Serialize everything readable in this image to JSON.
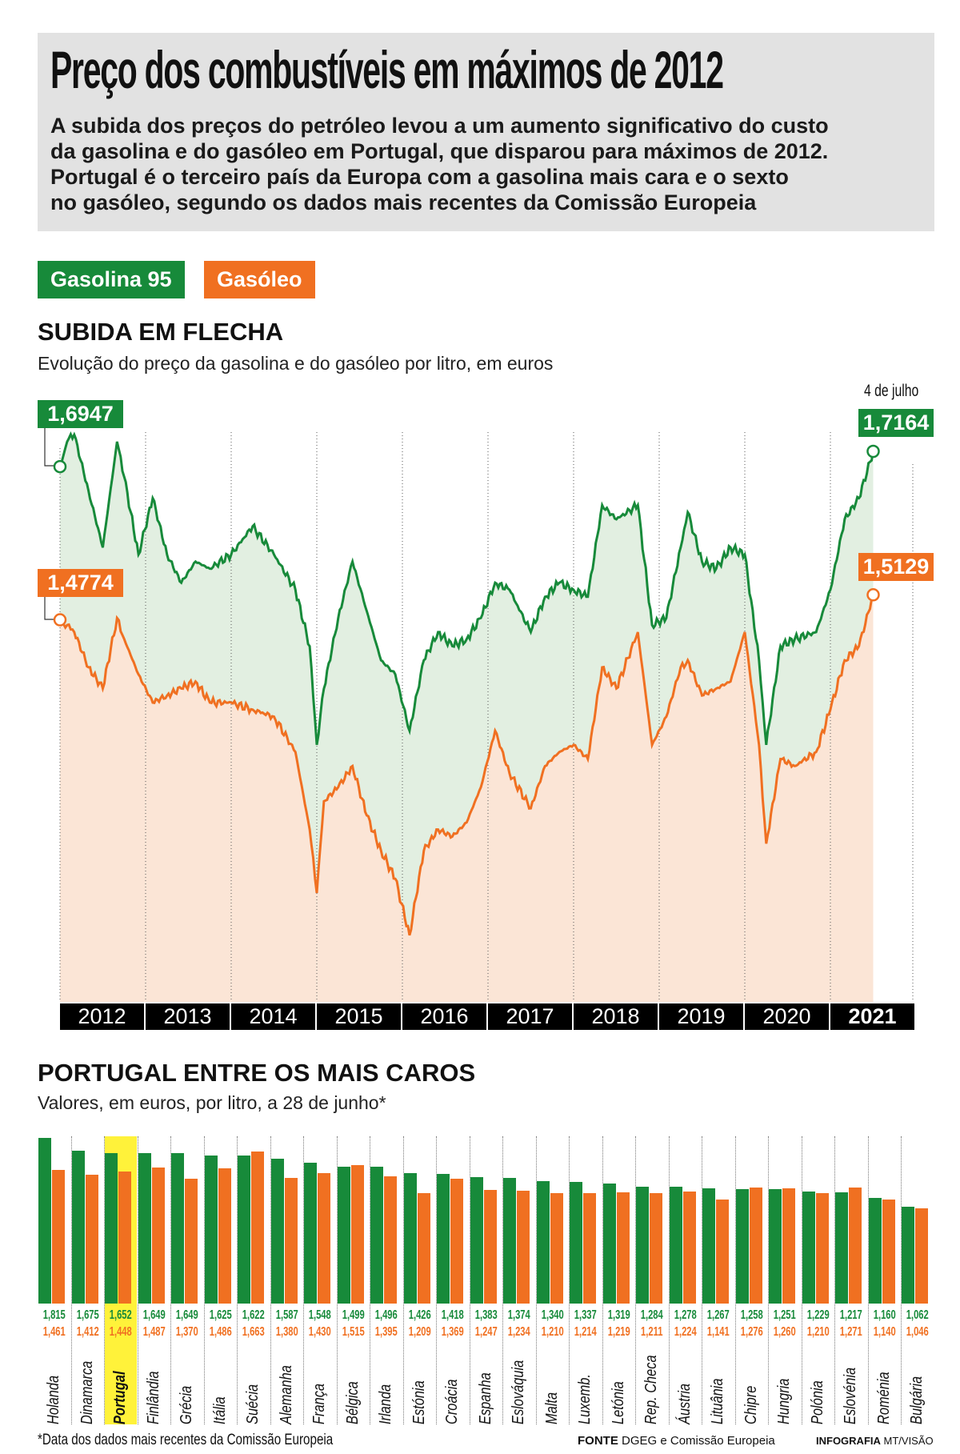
{
  "header": {
    "title": "Preço dos combustíveis em máximos de 2012",
    "intro": [
      "A subida dos preços do petróleo levou a um aumento significativo do custo",
      "da gasolina e do gasóleo em Portugal, que disparou para máximos de 2012.",
      "Portugal é o terceiro país da Europa com a gasolina mais cara e o sexto",
      "no gasóleo, segundo os dados mais recentes da Comissão Europeia"
    ]
  },
  "legend": {
    "gasoline": "Gasolina 95",
    "diesel": "Gasóleo"
  },
  "colors": {
    "gasoline": "#178a3a",
    "diesel": "#f07021",
    "gasoline_fill": "#e2efe1",
    "diesel_fill": "#fbe5d6",
    "highlight": "#fff23a",
    "header_bg": "#e2e2e2"
  },
  "chart_data": [
    {
      "type": "line",
      "title": "SUBIDA EM FLECHA",
      "subtitle": "Evolução do preço da gasolina e do gasóleo por litro, em euros",
      "x_tick_labels": [
        "2012",
        "2013",
        "2014",
        "2015",
        "2016",
        "2017",
        "2018",
        "2019",
        "2020",
        "2021"
      ],
      "end_label": "4 de julho",
      "annotations": {
        "gasoline_start": "1,6947",
        "gasoline_end": "1,7164",
        "diesel_start": "1,4774",
        "diesel_end": "1,5129"
      },
      "series": [
        {
          "name": "Gasolina 95",
          "points": [
            [
              "2012-01",
              1.6947
            ],
            [
              "2012-02",
              1.73
            ],
            [
              "2012-03",
              1.74
            ],
            [
              "2012-05",
              1.66
            ],
            [
              "2012-07",
              1.58
            ],
            [
              "2012-09",
              1.73
            ],
            [
              "2012-10",
              1.68
            ],
            [
              "2012-12",
              1.57
            ],
            [
              "2013-02",
              1.65
            ],
            [
              "2013-04",
              1.57
            ],
            [
              "2013-06",
              1.53
            ],
            [
              "2013-08",
              1.56
            ],
            [
              "2013-10",
              1.55
            ],
            [
              "2014-01",
              1.57
            ],
            [
              "2014-04",
              1.61
            ],
            [
              "2014-07",
              1.57
            ],
            [
              "2014-10",
              1.52
            ],
            [
              "2014-12",
              1.44
            ],
            [
              "2015-01",
              1.3
            ],
            [
              "2015-02",
              1.38
            ],
            [
              "2015-04",
              1.48
            ],
            [
              "2015-06",
              1.56
            ],
            [
              "2015-08",
              1.49
            ],
            [
              "2015-10",
              1.42
            ],
            [
              "2015-12",
              1.4
            ],
            [
              "2016-02",
              1.32
            ],
            [
              "2016-04",
              1.42
            ],
            [
              "2016-06",
              1.46
            ],
            [
              "2016-08",
              1.44
            ],
            [
              "2016-10",
              1.45
            ],
            [
              "2016-12",
              1.48
            ],
            [
              "2017-02",
              1.53
            ],
            [
              "2017-04",
              1.52
            ],
            [
              "2017-07",
              1.46
            ],
            [
              "2017-09",
              1.51
            ],
            [
              "2017-11",
              1.53
            ],
            [
              "2018-01",
              1.52
            ],
            [
              "2018-03",
              1.51
            ],
            [
              "2018-05",
              1.64
            ],
            [
              "2018-07",
              1.62
            ],
            [
              "2018-10",
              1.64
            ],
            [
              "2018-12",
              1.47
            ],
            [
              "2019-02",
              1.48
            ],
            [
              "2019-04",
              1.58
            ],
            [
              "2019-05",
              1.63
            ],
            [
              "2019-07",
              1.56
            ],
            [
              "2019-09",
              1.55
            ],
            [
              "2019-11",
              1.58
            ],
            [
              "2020-01",
              1.57
            ],
            [
              "2020-03",
              1.42
            ],
            [
              "2020-04",
              1.3
            ],
            [
              "2020-06",
              1.44
            ],
            [
              "2020-08",
              1.45
            ],
            [
              "2020-11",
              1.46
            ],
            [
              "2021-01",
              1.52
            ],
            [
              "2021-03",
              1.62
            ],
            [
              "2021-05",
              1.65
            ],
            [
              "2021-07",
              1.7164
            ]
          ]
        },
        {
          "name": "Gasóleo",
          "points": [
            [
              "2012-01",
              1.4774
            ],
            [
              "2012-02",
              1.47
            ],
            [
              "2012-03",
              1.46
            ],
            [
              "2012-05",
              1.41
            ],
            [
              "2012-07",
              1.38
            ],
            [
              "2012-09",
              1.48
            ],
            [
              "2012-10",
              1.45
            ],
            [
              "2012-12",
              1.4
            ],
            [
              "2013-02",
              1.36
            ],
            [
              "2013-04",
              1.37
            ],
            [
              "2013-06",
              1.38
            ],
            [
              "2013-08",
              1.39
            ],
            [
              "2013-10",
              1.36
            ],
            [
              "2014-01",
              1.36
            ],
            [
              "2014-04",
              1.35
            ],
            [
              "2014-07",
              1.34
            ],
            [
              "2014-10",
              1.29
            ],
            [
              "2014-12",
              1.18
            ],
            [
              "2015-01",
              1.09
            ],
            [
              "2015-02",
              1.22
            ],
            [
              "2015-04",
              1.24
            ],
            [
              "2015-06",
              1.27
            ],
            [
              "2015-08",
              1.2
            ],
            [
              "2015-10",
              1.15
            ],
            [
              "2015-12",
              1.11
            ],
            [
              "2016-02",
              1.03
            ],
            [
              "2016-04",
              1.15
            ],
            [
              "2016-06",
              1.18
            ],
            [
              "2016-08",
              1.17
            ],
            [
              "2016-10",
              1.19
            ],
            [
              "2016-12",
              1.24
            ],
            [
              "2017-02",
              1.32
            ],
            [
              "2017-04",
              1.26
            ],
            [
              "2017-07",
              1.21
            ],
            [
              "2017-09",
              1.27
            ],
            [
              "2017-11",
              1.29
            ],
            [
              "2018-01",
              1.3
            ],
            [
              "2018-03",
              1.28
            ],
            [
              "2018-05",
              1.41
            ],
            [
              "2018-07",
              1.38
            ],
            [
              "2018-10",
              1.46
            ],
            [
              "2018-12",
              1.3
            ],
            [
              "2019-02",
              1.34
            ],
            [
              "2019-04",
              1.41
            ],
            [
              "2019-05",
              1.42
            ],
            [
              "2019-07",
              1.37
            ],
            [
              "2019-09",
              1.38
            ],
            [
              "2019-11",
              1.39
            ],
            [
              "2020-01",
              1.46
            ],
            [
              "2020-03",
              1.3
            ],
            [
              "2020-04",
              1.16
            ],
            [
              "2020-06",
              1.28
            ],
            [
              "2020-08",
              1.27
            ],
            [
              "2020-11",
              1.29
            ],
            [
              "2021-01",
              1.35
            ],
            [
              "2021-03",
              1.42
            ],
            [
              "2021-05",
              1.44
            ],
            [
              "2021-07",
              1.5129
            ]
          ]
        }
      ]
    },
    {
      "type": "bar",
      "title": "PORTUGAL ENTRE OS MAIS CAROS",
      "subtitle": "Valores, em euros, por litro, a 28 de junho*",
      "highlight": "Portugal",
      "categories": [
        "Holanda",
        "Dinamarca",
        "Portugal",
        "Finlândia",
        "Grécia",
        "Itália",
        "Suécia",
        "Alemanha",
        "França",
        "Bélgica",
        "Irlanda",
        "Estónia",
        "Croácia",
        "Espanha",
        "Eslováquia",
        "Malta",
        "Luxemb.",
        "Letónia",
        "Rep. Checa",
        "Áustria",
        "Lituânia",
        "Chipre",
        "Hungria",
        "Polónia",
        "Eslovénia",
        "Roménia",
        "Bulgária"
      ],
      "series": [
        {
          "name": "Gasolina 95",
          "values": [
            1.815,
            1.675,
            1.652,
            1.649,
            1.649,
            1.625,
            1.622,
            1.587,
            1.548,
            1.499,
            1.496,
            1.426,
            1.418,
            1.383,
            1.374,
            1.34,
            1.337,
            1.319,
            1.284,
            1.278,
            1.267,
            1.258,
            1.251,
            1.229,
            1.217,
            1.16,
            1.062
          ]
        },
        {
          "name": "Gasóleo",
          "values": [
            1.461,
            1.412,
            1.448,
            1.487,
            1.37,
            1.486,
            1.663,
            1.38,
            1.43,
            1.515,
            1.395,
            1.209,
            1.369,
            1.247,
            1.234,
            1.21,
            1.214,
            1.219,
            1.211,
            1.224,
            1.141,
            1.276,
            1.26,
            1.21,
            1.271,
            1.14,
            1.046
          ]
        }
      ],
      "labels_green": [
        "1,815",
        "1,675",
        "1,652",
        "1,649",
        "1,649",
        "1,625",
        "1,622",
        "1,587",
        "1,548",
        "1,499",
        "1,496",
        "1,426",
        "1,418",
        "1,383",
        "1,374",
        "1,340",
        "1,337",
        "1,319",
        "1,284",
        "1,278",
        "1,267",
        "1,258",
        "1,251",
        "1,229",
        "1,217",
        "1,160",
        "1,062"
      ],
      "labels_orange": [
        "1,461",
        "1,412",
        "1,448",
        "1,487",
        "1,370",
        "1,486",
        "1,663",
        "1,380",
        "1,430",
        "1,515",
        "1,395",
        "1,209",
        "1,369",
        "1,247",
        "1,234",
        "1,210",
        "1,214",
        "1,219",
        "1,211",
        "1,224",
        "1,141",
        "1,276",
        "1,260",
        "1,210",
        "1,271",
        "1,140",
        "1,046"
      ]
    }
  ],
  "footer": {
    "note": "*Data dos dados mais recentes da Comissão Europeia",
    "source_label": "FONTE",
    "source": "DGEG e Comissão Europeia",
    "credit_label": "INFOGRAFIA",
    "credit": "MT/VISÃO"
  }
}
